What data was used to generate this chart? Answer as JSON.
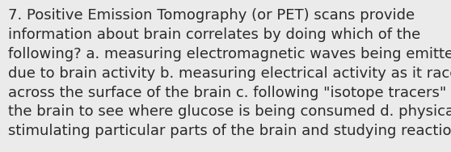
{
  "lines": [
    "7. Positive Emission Tomography (or PET) scans provide",
    "information about brain correlates by doing which of the",
    "following? a. measuring electromagnetic waves being emitted",
    "due to brain activity b. measuring electrical activity as it races",
    "across the surface of the brain c. following \"isotope tracers\" in",
    "the brain to see where glucose is being consumed d. physically",
    "stimulating particular parts of the brain and studying reactions"
  ],
  "background_color": "#ebebeb",
  "text_color": "#2a2a2a",
  "font_size": 13.0,
  "linespacing": 1.42
}
